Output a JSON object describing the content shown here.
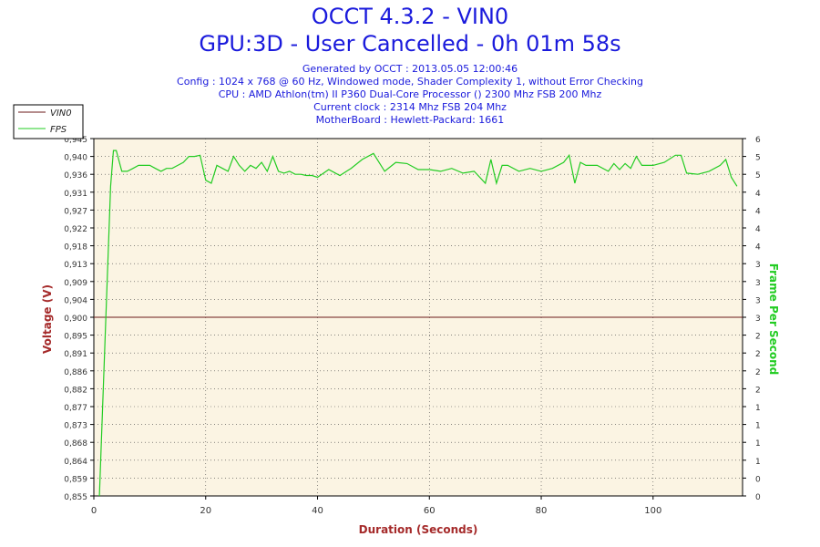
{
  "header": {
    "title": "OCCT 4.3.2 - VIN0",
    "subtitle": "GPU:3D - User Cancelled - 0h 01m 58s",
    "info": [
      "Generated by OCCT : 2013.05.05 12:00:46",
      "Config : 1024 x 768 @ 60 Hz, Windowed mode, Shader Complexity 1, without Error Checking",
      "CPU : AMD Athlon(tm) II P360 Dual-Core Processor () 2300 Mhz FSB 200 Mhz",
      "Current clock : 2314 Mhz FSB 204 Mhz",
      "MotherBoard : Hewlett-Packard: 1661"
    ]
  },
  "colors": {
    "plot_bg": "#fbf4e3",
    "vin0": "#6b1a1a",
    "fps": "#22cc22",
    "axis_left": "#a52a2a",
    "axis_right": "#22cc22",
    "grid": "#444444"
  },
  "chart_data": {
    "type": "line",
    "title": "OCCT 4.3.2 - VIN0",
    "xlabel": "Duration (Seconds)",
    "ylabel": "Voltage (V)",
    "y2label": "Frame Per Second",
    "xlim": [
      0,
      116
    ],
    "ylim": [
      0.855,
      0.945
    ],
    "y2lim": [
      0,
      6
    ],
    "x_ticks": [
      0,
      20,
      40,
      60,
      80,
      100
    ],
    "y_ticks": [
      "0,855",
      "0,859",
      "0,864",
      "0,868",
      "0,873",
      "0,877",
      "0,882",
      "0,886",
      "0,891",
      "0,895",
      "0,900",
      "0,904",
      "0,909",
      "0,913",
      "0,918",
      "0,922",
      "0,927",
      "0,931",
      "0,936",
      "0,940",
      "0,945"
    ],
    "y2_ticks": [
      "0",
      "0",
      "1",
      "1",
      "1",
      "1",
      "2",
      "2",
      "2",
      "2",
      "3",
      "3",
      "3",
      "3",
      "4",
      "4",
      "4",
      "4",
      "5",
      "5",
      "6"
    ],
    "legend": [
      "VIN0",
      "FPS"
    ],
    "legend_position": "top-left",
    "grid": true,
    "series": [
      {
        "name": "VIN0",
        "axis": "left",
        "x": [
          0,
          116
        ],
        "values": [
          0.9,
          0.9
        ]
      },
      {
        "name": "FPS",
        "axis": "right",
        "x": [
          1,
          3,
          3.5,
          4,
          5,
          6,
          7,
          8,
          9,
          10,
          11,
          12,
          13,
          14,
          15,
          16,
          17,
          18,
          19,
          20,
          21,
          22,
          23,
          24,
          25,
          26,
          27,
          28,
          29,
          30,
          31,
          32,
          33,
          34,
          35,
          36,
          37,
          38,
          39,
          40,
          42,
          44,
          46,
          48,
          50,
          52,
          54,
          56,
          58,
          60,
          62,
          64,
          66,
          68,
          70,
          71,
          72,
          73,
          74,
          76,
          78,
          80,
          82,
          84,
          85,
          86,
          87,
          88,
          90,
          92,
          93,
          94,
          95,
          96,
          97,
          98,
          100,
          102,
          104,
          105,
          106,
          108,
          110,
          112,
          113,
          114,
          115
        ],
        "values": [
          0,
          5.2,
          5.8,
          5.8,
          5.45,
          5.45,
          5.5,
          5.55,
          5.55,
          5.55,
          5.5,
          5.45,
          5.5,
          5.5,
          5.55,
          5.6,
          5.7,
          5.7,
          5.72,
          5.3,
          5.25,
          5.55,
          5.5,
          5.45,
          5.7,
          5.55,
          5.45,
          5.55,
          5.5,
          5.6,
          5.45,
          5.7,
          5.45,
          5.42,
          5.45,
          5.4,
          5.4,
          5.38,
          5.38,
          5.35,
          5.48,
          5.38,
          5.5,
          5.65,
          5.75,
          5.45,
          5.6,
          5.58,
          5.48,
          5.48,
          5.45,
          5.5,
          5.42,
          5.45,
          5.25,
          5.65,
          5.25,
          5.55,
          5.55,
          5.45,
          5.5,
          5.45,
          5.5,
          5.6,
          5.72,
          5.25,
          5.6,
          5.55,
          5.55,
          5.45,
          5.58,
          5.48,
          5.58,
          5.5,
          5.7,
          5.55,
          5.55,
          5.6,
          5.72,
          5.72,
          5.42,
          5.4,
          5.45,
          5.55,
          5.65,
          5.35,
          5.2
        ]
      }
    ]
  }
}
